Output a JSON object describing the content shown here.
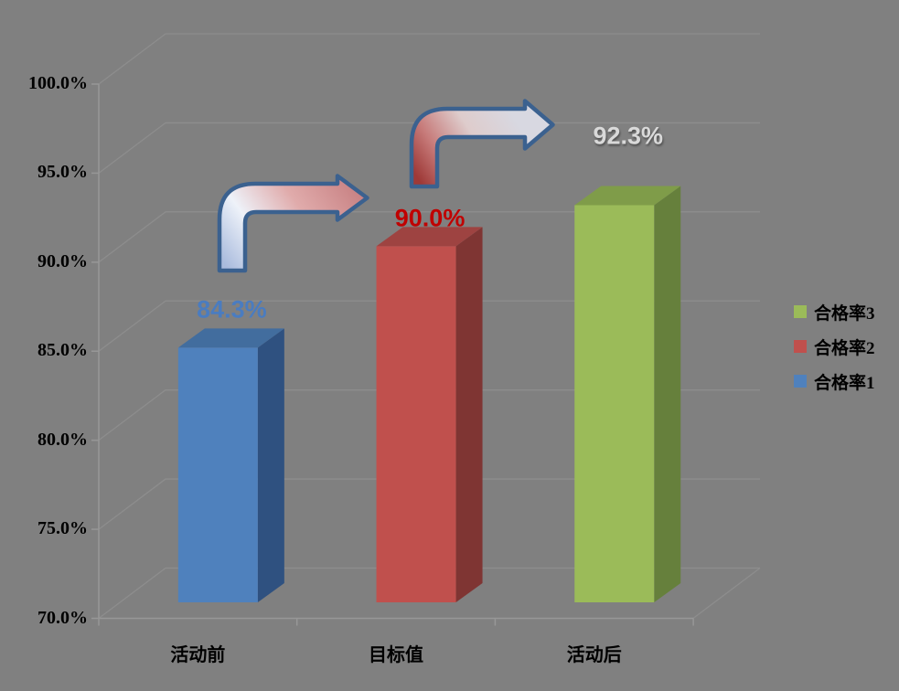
{
  "colors": {
    "background": "#808080",
    "text": "#000000",
    "gridline": "#8d8d8d",
    "axis": "#979797"
  },
  "chart_data": {
    "type": "bar",
    "projection": "3d-column",
    "title": "",
    "xlabel": "",
    "ylabel": "",
    "categories": [
      "活动前",
      "目标值",
      "活动后"
    ],
    "y_axis": {
      "min": 70,
      "max": 100,
      "step": 5,
      "tick_labels": [
        "100.0%",
        "95.0%",
        "90.0%",
        "85.0%",
        "80.0%",
        "75.0%",
        "70.0%"
      ],
      "unit": "%"
    },
    "grid": true,
    "bars": [
      {
        "category": "活动前",
        "series": "合格率1",
        "value": 84.3,
        "label": "84.3%",
        "label_color": "#4a7cc0",
        "front": "#4f81bd",
        "side": "#2f5180",
        "top": "#426d9e"
      },
      {
        "category": "目标值",
        "series": "合格率2",
        "value": 90.0,
        "label": "90.0%",
        "label_color": "#c00000",
        "front": "#c0504d",
        "side": "#7f3533",
        "top": "#9e4341"
      },
      {
        "category": "活动后",
        "series": "合格率3",
        "value": 92.3,
        "label": "92.3%",
        "label_color": "#d9d9d9",
        "front": "#9bbb59",
        "side": "#66803c",
        "top": "#7f9c49"
      }
    ],
    "legend": {
      "position": "right",
      "items": [
        {
          "label": "合格率3",
          "color": "#9bbb59"
        },
        {
          "label": "合格率2",
          "color": "#c0504d"
        },
        {
          "label": "合格率1",
          "color": "#4f81bd"
        }
      ]
    },
    "annotations": [
      {
        "name": "bent-arrow-before-to-target",
        "shape": "bent-up-right-arrow",
        "outline": "#3b618f",
        "gradient": [
          "#a9bbdd",
          "#eef2f9",
          "#e0abab",
          "#c67e80"
        ]
      },
      {
        "name": "bent-arrow-target-to-after",
        "shape": "bent-up-right-arrow",
        "outline": "#3b618f",
        "gradient": [
          "#9e3937",
          "#c77b7a",
          "#decccc",
          "#d8d8e1"
        ]
      }
    ]
  }
}
